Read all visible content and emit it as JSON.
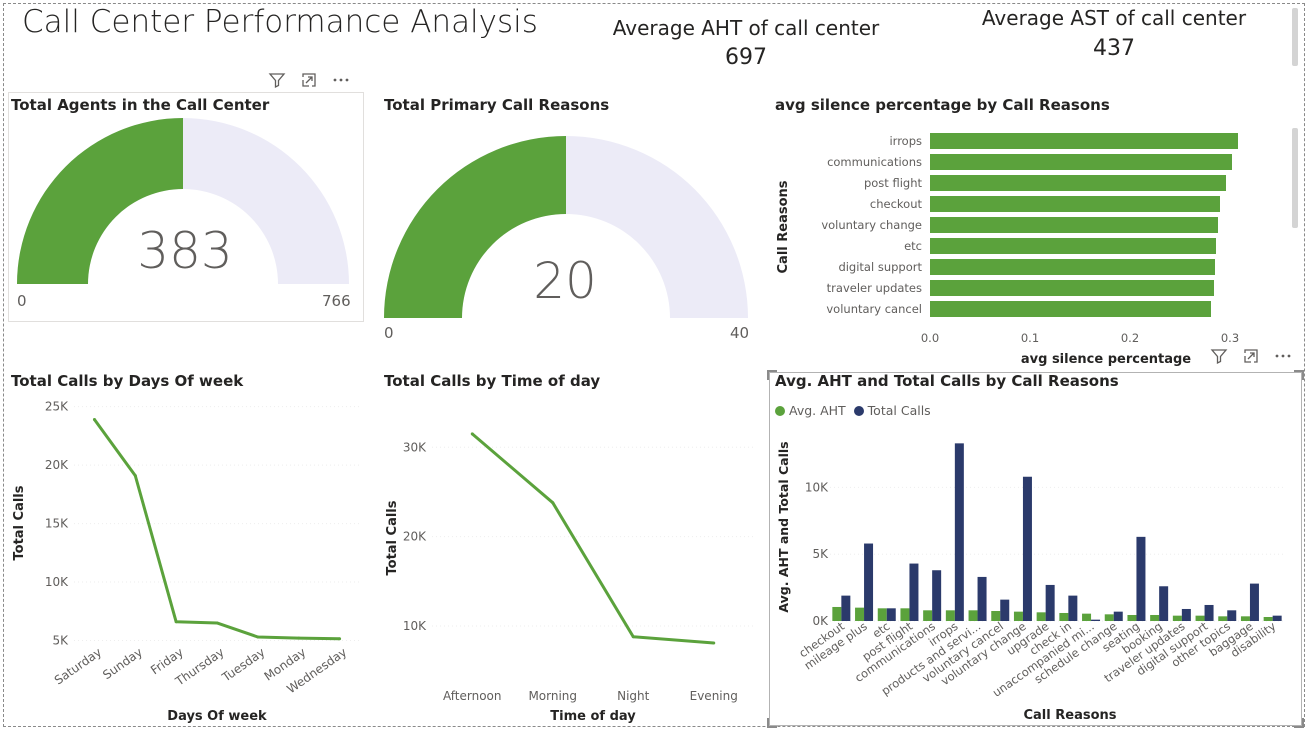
{
  "report": {
    "title": "Call Center Performance Analysis"
  },
  "cards": {
    "aht": {
      "label": "Average AHT of call center",
      "value": "697"
    },
    "ast": {
      "label": "Average AST of call center",
      "value": "437"
    }
  },
  "gauges": {
    "agents": {
      "title": "Total Agents in the Call Center",
      "value": "383",
      "min": "0",
      "max": "766",
      "fraction": 0.5
    },
    "reasons": {
      "title": "Total Primary Call Reasons",
      "value": "20",
      "min": "0",
      "max": "40",
      "fraction": 0.5
    }
  },
  "colors": {
    "green": "#5ba23c",
    "navy": "#2b3a6b",
    "gauge_bg": "#ecebf7"
  },
  "icons": {
    "filter": "filter-icon",
    "focus": "focus-mode-icon",
    "more": "more-options-icon"
  },
  "chart_data": [
    {
      "id": "silence",
      "type": "bar",
      "orientation": "horizontal",
      "title": "avg silence percentage by Call Reasons",
      "xlabel": "avg silence percentage",
      "ylabel": "Call Reasons",
      "categories": [
        "irrops",
        "communications",
        "post flight",
        "checkout",
        "voluntary change",
        "etc",
        "digital support",
        "traveler updates",
        "voluntary cancel"
      ],
      "values": [
        0.308,
        0.302,
        0.296,
        0.29,
        0.288,
        0.286,
        0.285,
        0.284,
        0.281
      ],
      "xlim": [
        0,
        0.31
      ],
      "xticks": [
        "0.0",
        "0.1",
        "0.2",
        "0.3"
      ],
      "xtick_values": [
        0,
        0.1,
        0.2,
        0.3
      ]
    },
    {
      "id": "days",
      "type": "line",
      "title": "Total Calls by Days Of week",
      "xlabel": "Days Of week",
      "ylabel": "Total Calls",
      "categories": [
        "Saturday",
        "Sunday",
        "Friday",
        "Thursday",
        "Tuesday",
        "Monday",
        "Wednesday"
      ],
      "values": [
        23900,
        19100,
        6600,
        6500,
        5300,
        5200,
        5150
      ],
      "ylim": [
        4700,
        25400
      ],
      "yticks": [
        "5K",
        "10K",
        "15K",
        "20K",
        "25K"
      ],
      "ytick_values": [
        5000,
        10000,
        15000,
        20000,
        25000
      ]
    },
    {
      "id": "timeofday",
      "type": "line",
      "title": "Total Calls by Time of day",
      "xlabel": "Time of day",
      "ylabel": "Total Calls",
      "categories": [
        "Afternoon",
        "Morning",
        "Night",
        "Evening"
      ],
      "values": [
        31500,
        23800,
        8800,
        8100
      ],
      "ylim": [
        6200,
        33500
      ],
      "yticks": [
        "10K",
        "20K",
        "30K"
      ],
      "ytick_values": [
        10000,
        20000,
        30000
      ]
    },
    {
      "id": "ahtcalls",
      "type": "bar",
      "title": "Avg. AHT and Total Calls by Call Reasons",
      "xlabel": "Call Reasons",
      "ylabel": "Avg. AHT and Total Calls",
      "categories": [
        "checkout",
        "mileage plus",
        "etc",
        "post flight",
        "communications",
        "irrops",
        "products and servi...",
        "voluntary cancel",
        "voluntary change",
        "upgrade",
        "check in",
        "unaccompanied mi...",
        "schedule change",
        "seating",
        "booking",
        "traveler updates",
        "digital support",
        "other topics",
        "baggage",
        "disability"
      ],
      "series": [
        {
          "name": "Avg. AHT",
          "values": [
            1050,
            1000,
            950,
            950,
            800,
            800,
            800,
            750,
            700,
            650,
            600,
            550,
            500,
            450,
            450,
            400,
            400,
            350,
            350,
            300
          ]
        },
        {
          "name": "Total Calls",
          "values": [
            1900,
            5800,
            950,
            4300,
            3800,
            13300,
            3300,
            1600,
            10800,
            2700,
            1900,
            100,
            700,
            6300,
            2600,
            900,
            1200,
            800,
            2800,
            400
          ]
        }
      ],
      "ylim": [
        0,
        14000
      ],
      "yticks": [
        "0K",
        "5K",
        "10K"
      ],
      "ytick_values": [
        0,
        5000,
        10000
      ],
      "legend": "top-left"
    }
  ]
}
